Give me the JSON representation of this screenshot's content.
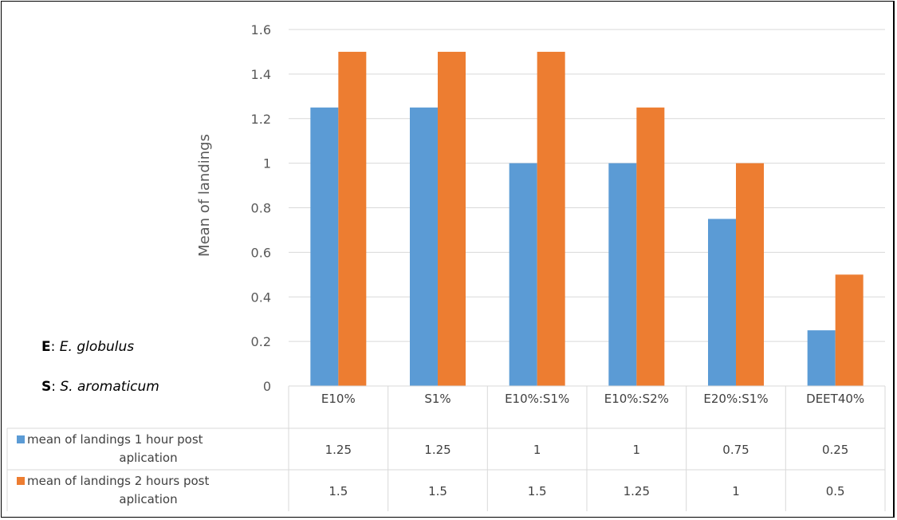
{
  "chart_data": {
    "type": "bar",
    "categories": [
      "E10%",
      "S1%",
      "E10%:S1%",
      "E10%:S2%",
      "E20%:S1%",
      "DEET40%"
    ],
    "series": [
      {
        "name": "mean of landings 1 hour post aplication",
        "name_lines": [
          "mean of landings 1 hour post",
          "aplication"
        ],
        "color": "#5B9BD5",
        "values": [
          1.25,
          1.25,
          1,
          1,
          0.75,
          0.25
        ],
        "value_labels": [
          "1.25",
          "1.25",
          "1",
          "1",
          "0.75",
          "0.25"
        ]
      },
      {
        "name": "mean of landings 2 hours post aplication",
        "name_lines": [
          "mean of landings 2 hours post",
          "aplication"
        ],
        "color": "#ED7D31",
        "values": [
          1.5,
          1.5,
          1.5,
          1.25,
          1,
          0.5
        ],
        "value_labels": [
          "1.5",
          "1.5",
          "1.5",
          "1.25",
          "1",
          "0.5"
        ]
      }
    ],
    "ylabel": "Mean of landings",
    "ylim": [
      0,
      1.6
    ],
    "yticks": [
      0,
      0.2,
      0.4,
      0.6,
      0.8,
      1,
      1.2,
      1.4,
      1.6
    ],
    "ytick_labels": [
      "0",
      "0.2",
      "0.4",
      "0.6",
      "0.8",
      "1",
      "1.2",
      "1.4",
      "1.6"
    ],
    "grid": true,
    "data_table": true
  },
  "notes": [
    {
      "key": "E",
      "sep": ": ",
      "text": "E. globulus"
    },
    {
      "key": "S",
      "sep": ": ",
      "text": "S. aromaticum"
    }
  ]
}
